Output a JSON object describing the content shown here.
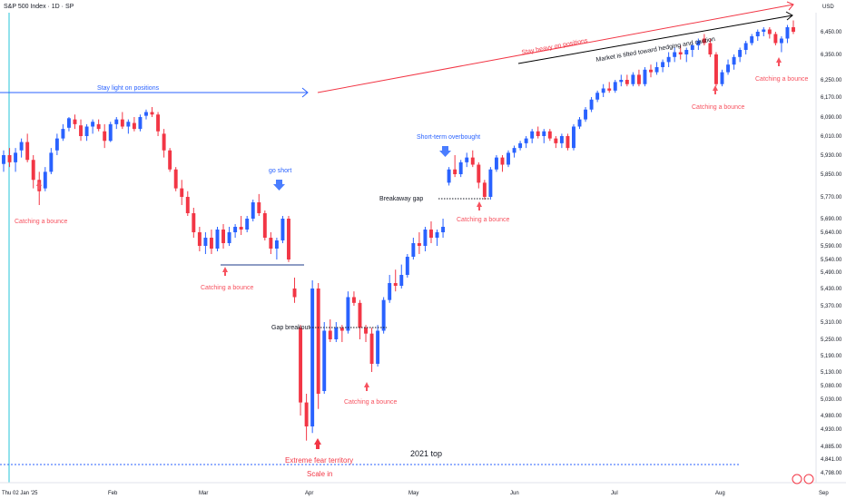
{
  "header": {
    "title": "S&P 500 Index · 1D · SP",
    "currency": "USD"
  },
  "colors": {
    "up": "#2962ff",
    "down": "#f23645",
    "blue_line": "#2962ff",
    "red_arrow": "#f23645",
    "black_line": "#000000",
    "bounce": "#f7525f",
    "teal_line": "#26c6da"
  },
  "chart_data": {
    "type": "candlestick",
    "title": "S&P 500 Index · 1D · SP",
    "x_ticks": [
      "Thu 02 Jan '25",
      "Feb",
      "Mar",
      "Apr",
      "May",
      "Jun",
      "Jul",
      "Aug",
      "Sep"
    ],
    "y_ticks": [
      "6,450.00",
      "6,350.00",
      "6,250.00",
      "6,170.00",
      "6,090.00",
      "6,010.00",
      "5,930.00",
      "5,850.00",
      "5,770.00",
      "5,690.00",
      "5,640.00",
      "5,590.00",
      "5,540.00",
      "5,490.00",
      "5,430.00",
      "5,370.00",
      "5,310.00",
      "5,250.00",
      "5,190.00",
      "5,130.00",
      "5,080.00",
      "5,030.00",
      "4,980.00",
      "4,930.00",
      "4,885.00",
      "4,841.00",
      "4,798.00"
    ],
    "candles": [
      [
        5893,
        5950,
        5860,
        5930
      ],
      [
        5930,
        5960,
        5880,
        5900
      ],
      [
        5900,
        5960,
        5860,
        5940
      ],
      [
        5950,
        6000,
        5920,
        5985
      ],
      [
        5985,
        6020,
        5900,
        5910
      ],
      [
        5910,
        5930,
        5800,
        5830
      ],
      [
        5830,
        5860,
        5740,
        5790
      ],
      [
        5800,
        5880,
        5790,
        5860
      ],
      [
        5860,
        5960,
        5850,
        5940
      ],
      [
        5950,
        6020,
        5930,
        6000
      ],
      [
        6000,
        6060,
        5990,
        6040
      ],
      [
        6045,
        6090,
        6030,
        6085
      ],
      [
        6080,
        6100,
        6040,
        6060
      ],
      [
        6055,
        6080,
        5990,
        6010
      ],
      [
        6010,
        6060,
        5990,
        6050
      ],
      [
        6050,
        6080,
        6020,
        6070
      ],
      [
        6060,
        6080,
        6030,
        6040
      ],
      [
        6030,
        6060,
        5960,
        5990
      ],
      [
        5990,
        6070,
        5985,
        6060
      ],
      [
        6060,
        6090,
        6040,
        6080
      ],
      [
        6080,
        6110,
        6040,
        6050
      ],
      [
        6050,
        6080,
        6020,
        6070
      ],
      [
        6065,
        6090,
        6030,
        6040
      ],
      [
        6040,
        6100,
        6030,
        6090
      ],
      [
        6095,
        6120,
        6080,
        6110
      ],
      [
        6110,
        6130,
        6090,
        6100
      ],
      [
        6100,
        6110,
        6010,
        6030
      ],
      [
        6020,
        6040,
        5920,
        5950
      ],
      [
        5950,
        5960,
        5860,
        5870
      ],
      [
        5870,
        5880,
        5790,
        5800
      ],
      [
        5800,
        5830,
        5740,
        5770
      ],
      [
        5770,
        5790,
        5700,
        5710
      ],
      [
        5710,
        5730,
        5620,
        5640
      ],
      [
        5640,
        5660,
        5570,
        5590
      ],
      [
        5590,
        5640,
        5560,
        5620
      ],
      [
        5620,
        5650,
        5560,
        5580
      ],
      [
        5580,
        5660,
        5570,
        5650
      ],
      [
        5650,
        5670,
        5580,
        5600
      ],
      [
        5600,
        5660,
        5590,
        5640
      ],
      [
        5640,
        5670,
        5620,
        5660
      ],
      [
        5660,
        5700,
        5630,
        5650
      ],
      [
        5650,
        5700,
        5640,
        5690
      ],
      [
        5690,
        5760,
        5680,
        5750
      ],
      [
        5750,
        5780,
        5700,
        5710
      ],
      [
        5710,
        5720,
        5610,
        5620
      ],
      [
        5620,
        5640,
        5560,
        5580
      ],
      [
        5580,
        5620,
        5540,
        5610
      ],
      [
        5610,
        5700,
        5600,
        5690
      ],
      [
        5690,
        5700,
        5530,
        5540
      ],
      [
        5430,
        5470,
        5380,
        5400
      ],
      [
        5290,
        5300,
        4980,
        5020
      ],
      [
        5020,
        5050,
        4900,
        4940
      ],
      [
        4940,
        5460,
        4920,
        5430
      ],
      [
        5430,
        5450,
        5000,
        5050
      ],
      [
        5060,
        5310,
        5050,
        5280
      ],
      [
        5280,
        5320,
        5240,
        5250
      ],
      [
        5250,
        5310,
        5240,
        5290
      ],
      [
        5290,
        5300,
        5240,
        5280
      ],
      [
        5280,
        5420,
        5270,
        5400
      ],
      [
        5400,
        5420,
        5370,
        5380
      ],
      [
        5380,
        5390,
        5250,
        5290
      ],
      [
        5290,
        5300,
        5240,
        5270
      ],
      [
        5270,
        5290,
        5130,
        5160
      ],
      [
        5160,
        5300,
        5150,
        5280
      ],
      [
        5280,
        5400,
        5270,
        5390
      ],
      [
        5390,
        5480,
        5380,
        5450
      ],
      [
        5450,
        5500,
        5420,
        5440
      ],
      [
        5440,
        5520,
        5430,
        5480
      ],
      [
        5480,
        5560,
        5470,
        5550
      ],
      [
        5550,
        5620,
        5540,
        5600
      ],
      [
        5600,
        5640,
        5560,
        5590
      ],
      [
        5590,
        5660,
        5570,
        5650
      ],
      [
        5650,
        5680,
        5600,
        5620
      ],
      [
        5620,
        5650,
        5590,
        5640
      ],
      [
        5640,
        5690,
        5620,
        5660
      ],
      [
        5820,
        5880,
        5810,
        5870
      ],
      [
        5870,
        5930,
        5840,
        5850
      ],
      [
        5850,
        5910,
        5840,
        5900
      ],
      [
        5900,
        5940,
        5880,
        5920
      ],
      [
        5920,
        5950,
        5880,
        5890
      ],
      [
        5890,
        5900,
        5800,
        5820
      ],
      [
        5820,
        5830,
        5760,
        5770
      ],
      [
        5770,
        5880,
        5760,
        5870
      ],
      [
        5870,
        5930,
        5860,
        5920
      ],
      [
        5920,
        5930,
        5860,
        5890
      ],
      [
        5890,
        5950,
        5880,
        5940
      ],
      [
        5940,
        5970,
        5920,
        5960
      ],
      [
        5960,
        5990,
        5950,
        5980
      ],
      [
        5980,
        6010,
        5960,
        6000
      ],
      [
        6000,
        6040,
        5980,
        6030
      ],
      [
        6030,
        6050,
        6000,
        6010
      ],
      [
        6010,
        6040,
        5980,
        6030
      ],
      [
        6030,
        6040,
        5990,
        6000
      ],
      [
        6000,
        6010,
        5960,
        5980
      ],
      [
        5980,
        6020,
        5960,
        6010
      ],
      [
        6010,
        6020,
        5950,
        5960
      ],
      [
        5960,
        6060,
        5950,
        6050
      ],
      [
        6050,
        6090,
        6040,
        6080
      ],
      [
        6080,
        6130,
        6070,
        6120
      ],
      [
        6120,
        6170,
        6110,
        6160
      ],
      [
        6160,
        6200,
        6150,
        6190
      ],
      [
        6190,
        6230,
        6170,
        6210
      ],
      [
        6210,
        6240,
        6190,
        6200
      ],
      [
        6200,
        6250,
        6190,
        6240
      ],
      [
        6240,
        6270,
        6220,
        6250
      ],
      [
        6250,
        6270,
        6220,
        6230
      ],
      [
        6230,
        6280,
        6220,
        6270
      ],
      [
        6270,
        6290,
        6220,
        6230
      ],
      [
        6230,
        6300,
        6220,
        6290
      ],
      [
        6290,
        6310,
        6260,
        6280
      ],
      [
        6280,
        6320,
        6270,
        6300
      ],
      [
        6300,
        6330,
        6280,
        6320
      ],
      [
        6320,
        6360,
        6300,
        6340
      ],
      [
        6340,
        6380,
        6320,
        6360
      ],
      [
        6360,
        6390,
        6330,
        6350
      ],
      [
        6350,
        6380,
        6320,
        6370
      ],
      [
        6370,
        6400,
        6340,
        6390
      ],
      [
        6390,
        6420,
        6370,
        6410
      ],
      [
        6420,
        6440,
        6390,
        6400
      ],
      [
        6400,
        6420,
        6340,
        6350
      ],
      [
        6350,
        6360,
        6220,
        6230
      ],
      [
        6230,
        6290,
        6220,
        6280
      ],
      [
        6280,
        6330,
        6270,
        6310
      ],
      [
        6310,
        6350,
        6290,
        6340
      ],
      [
        6340,
        6380,
        6320,
        6370
      ],
      [
        6370,
        6410,
        6350,
        6400
      ],
      [
        6400,
        6440,
        6390,
        6430
      ],
      [
        6430,
        6460,
        6410,
        6450
      ],
      [
        6450,
        6470,
        6430,
        6460
      ],
      [
        6460,
        6470,
        6420,
        6440
      ],
      [
        6440,
        6450,
        6390,
        6400
      ],
      [
        6400,
        6430,
        6360,
        6420
      ],
      [
        6420,
        6480,
        6400,
        6470
      ],
      [
        6470,
        6500,
        6440,
        6450
      ]
    ],
    "annotations": {
      "stay_light": "Stay light on positions",
      "stay_heavy": "Stay heavy on positions",
      "market_tilted": "Market is tilted toward hedging and caution",
      "go_short": "go short",
      "short_term_overbought": "Short-term overbought",
      "breakaway_gap": "Breakaway gap",
      "gap_breakout": "Gap breakout",
      "top_2021": "2021 top",
      "extreme_fear": "Extreme fear territory",
      "scale_in": "Scale in",
      "bounce_1": "Catching a bounce",
      "bounce_2": "Catching a bounce",
      "bounce_3": "Catching a bounce",
      "bounce_4": "Catching a bounce",
      "bounce_5": "Catching a bounce",
      "bounce_6": "Catching a bounce"
    }
  }
}
